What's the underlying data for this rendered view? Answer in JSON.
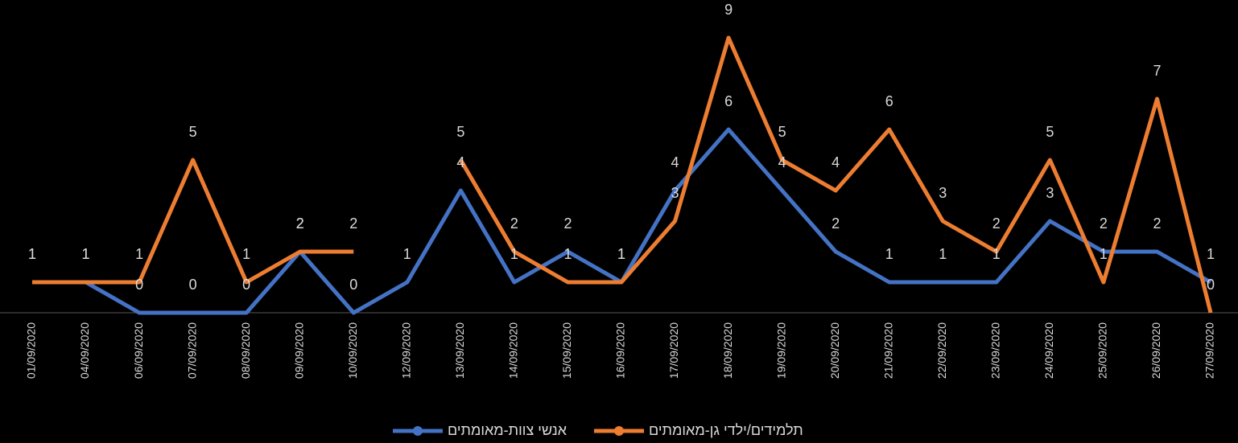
{
  "chart_data": {
    "type": "line",
    "categories": [
      "01/09/2020",
      "04/09/2020",
      "06/09/2020",
      "07/09/2020",
      "08/09/2020",
      "09/09/2020",
      "10/09/2020",
      "12/09/2020",
      "13/09/2020",
      "14/09/2020",
      "15/09/2020",
      "16/09/2020",
      "17/09/2020",
      "18/09/2020",
      "19/09/2020",
      "20/09/2020",
      "21/09/2020",
      "22/09/2020",
      "23/09/2020",
      "24/09/2020",
      "25/09/2020",
      "26/09/2020",
      "27/09/2020"
    ],
    "series": [
      {
        "name": "אנשי צוות-מאומתים",
        "color": "#4472c4",
        "values": [
          1,
          1,
          0,
          0,
          0,
          2,
          0,
          1,
          4,
          1,
          2,
          1,
          4,
          6,
          4,
          2,
          1,
          1,
          1,
          3,
          2,
          2,
          1
        ]
      },
      {
        "name": "תלמידים/ילדי גן-מאומתים",
        "color": "#ed7d31",
        "values": [
          1,
          1,
          1,
          5,
          1,
          2,
          2,
          null,
          5,
          2,
          1,
          1,
          3,
          9,
          5,
          4,
          6,
          3,
          2,
          5,
          1,
          7,
          0
        ]
      }
    ],
    "ylim": [
      0,
      10
    ],
    "legend": "bottom",
    "data_labels": true
  }
}
